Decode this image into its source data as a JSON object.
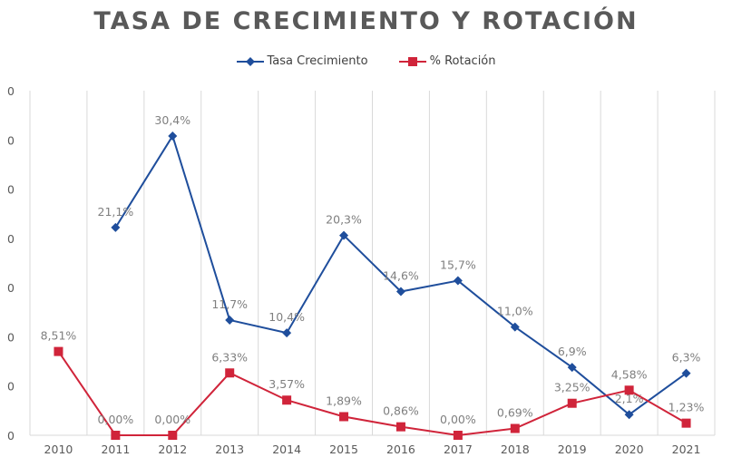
{
  "chart_data": {
    "type": "line",
    "title": "TASA DE CRECIMIENTO Y ROTACIÓN",
    "xlabel": "",
    "ylabel": "",
    "legend_position": "top-center",
    "grid": "vertical",
    "categories": [
      "2010",
      "2011",
      "2012",
      "2013",
      "2014",
      "2015",
      "2016",
      "2017",
      "2018",
      "2019",
      "2020",
      "2021"
    ],
    "y_tick_labels": [
      "0",
      "0",
      "0",
      "0",
      "0",
      "0",
      "0",
      "0"
    ],
    "ylim": [
      0,
      35
    ],
    "series": [
      {
        "name": "Tasa Crecimiento",
        "color": "#1f4e9c",
        "marker": "diamond",
        "values": [
          null,
          21.1,
          30.4,
          11.7,
          10.4,
          20.3,
          14.6,
          15.7,
          11.0,
          6.9,
          2.1,
          6.3
        ],
        "labels": [
          "",
          "21,1%",
          "30,4%",
          "11,7%",
          "10,4%",
          "20,3%",
          "14,6%",
          "15,7%",
          "11,0%",
          "6,9%",
          "2,1%",
          "6,3%"
        ]
      },
      {
        "name": "% Rotación",
        "color": "#d0243a",
        "marker": "square",
        "values": [
          8.51,
          0.0,
          0.0,
          6.33,
          3.57,
          1.89,
          0.86,
          0.0,
          0.69,
          3.25,
          4.58,
          1.23
        ],
        "labels": [
          "8,51%",
          "0,00%",
          "0,00%",
          "6,33%",
          "3,57%",
          "1,89%",
          "0,86%",
          "0,00%",
          "0,69%",
          "3,25%",
          "4,58%",
          "1,23%"
        ]
      }
    ]
  }
}
